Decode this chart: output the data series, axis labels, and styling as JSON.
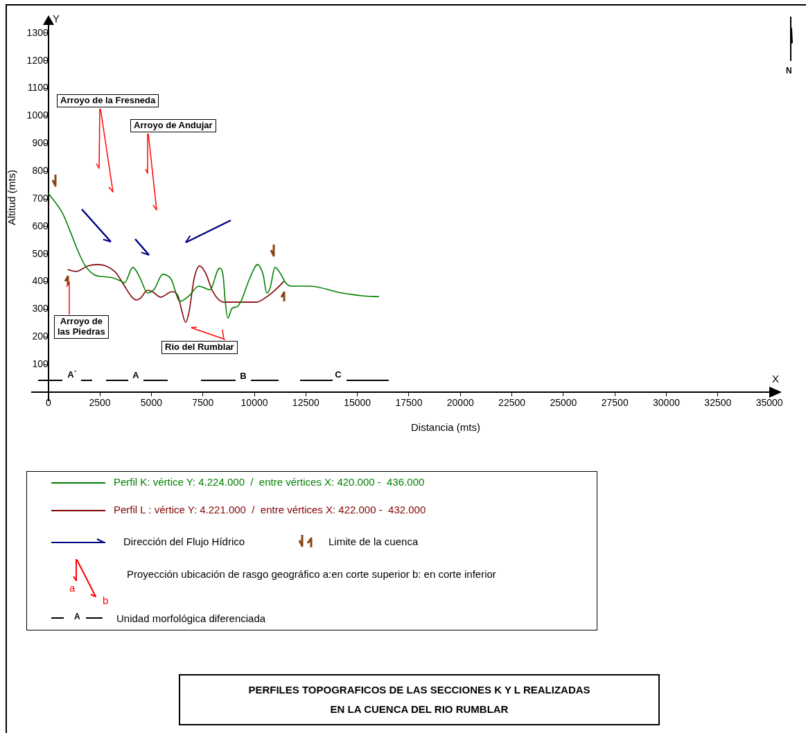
{
  "chart_data": {
    "type": "line",
    "title": "PERFILES TOPOGRAFICOS DE LAS SECCIONES K Y L REALIZADAS\nEN LA CUENCA DEL RIO  RUMBLAR",
    "xlabel": "Distancia (mts)",
    "ylabel": "Altitud (mts)",
    "xlim": [
      -800,
      35500
    ],
    "ylim": [
      -30,
      1350
    ],
    "xticks": [
      0,
      2500,
      5000,
      7500,
      10000,
      12500,
      15000,
      17500,
      20000,
      22500,
      25000,
      27500,
      30000,
      32500,
      35000
    ],
    "yticks": [
      100,
      200,
      300,
      400,
      500,
      600,
      700,
      800,
      900,
      1000,
      1100,
      1200,
      1300
    ],
    "grid": false,
    "legend": "bottom",
    "marker": "none",
    "line_style": "solid",
    "series": [
      {
        "name": "Perfil K: vértice Y: 4.224.000  /  entre vértices X: 420.000 -  436.000",
        "color": "#008000",
        "x": [
          0,
          673,
          1010,
          1450,
          1780,
          2250,
          2590,
          3130,
          3470,
          3700,
          4100,
          4480,
          4810,
          5150,
          5550,
          5960,
          6390,
          6830,
          7300,
          7840,
          8310,
          8480,
          8580,
          8710,
          8920,
          9150,
          9350,
          9760,
          10160,
          10430,
          10600,
          10770,
          11000,
          11270,
          11540,
          11780,
          12690,
          14130,
          15240,
          16050
        ],
        "values": [
          720,
          650,
          592,
          509,
          459,
          424,
          419,
          414,
          404,
          396,
          452,
          409,
          359,
          374,
          427,
          409,
          329,
          349,
          384,
          371,
          449,
          424,
          334,
          268,
          304,
          309,
          329,
          409,
          462,
          424,
          359,
          379,
          452,
          429,
          394,
          384,
          384,
          361,
          349,
          346
        ]
      },
      {
        "name": "Perfil L : vértice Y: 4.221.000  /  entre vértices X: 422.000 -  432.000",
        "color": "#800000",
        "x": [
          940,
          1350,
          1910,
          2360,
          2800,
          3260,
          3700,
          4040,
          4270,
          4480,
          4810,
          5050,
          5450,
          6000,
          6290,
          6490,
          6660,
          6830,
          7070,
          7340,
          7640,
          7970,
          8510,
          10090,
          10670,
          11100,
          11440
        ],
        "values": [
          444,
          437,
          457,
          462,
          457,
          434,
          384,
          346,
          334,
          341,
          369,
          364,
          344,
          364,
          349,
          291,
          253,
          291,
          409,
          457,
          430,
          366,
          326,
          326,
          349,
          376,
          402
        ]
      }
    ],
    "annotations": [
      "Arroyo de la Fresneda",
      "Arroyo de Andujar",
      "Arroyo de\nlas Piedras",
      "Rio del Rumblar",
      "A´",
      "A",
      "B",
      "C",
      "Y",
      "X",
      "N",
      "Dirección del Flujo Hídrico",
      "Limite de la cuenca",
      "Proyección ubicación de rasgo geográfico a:en corte superior b: en corte inferior",
      "a",
      "b",
      "A",
      "Unidad morfológica diferenciada"
    ]
  }
}
